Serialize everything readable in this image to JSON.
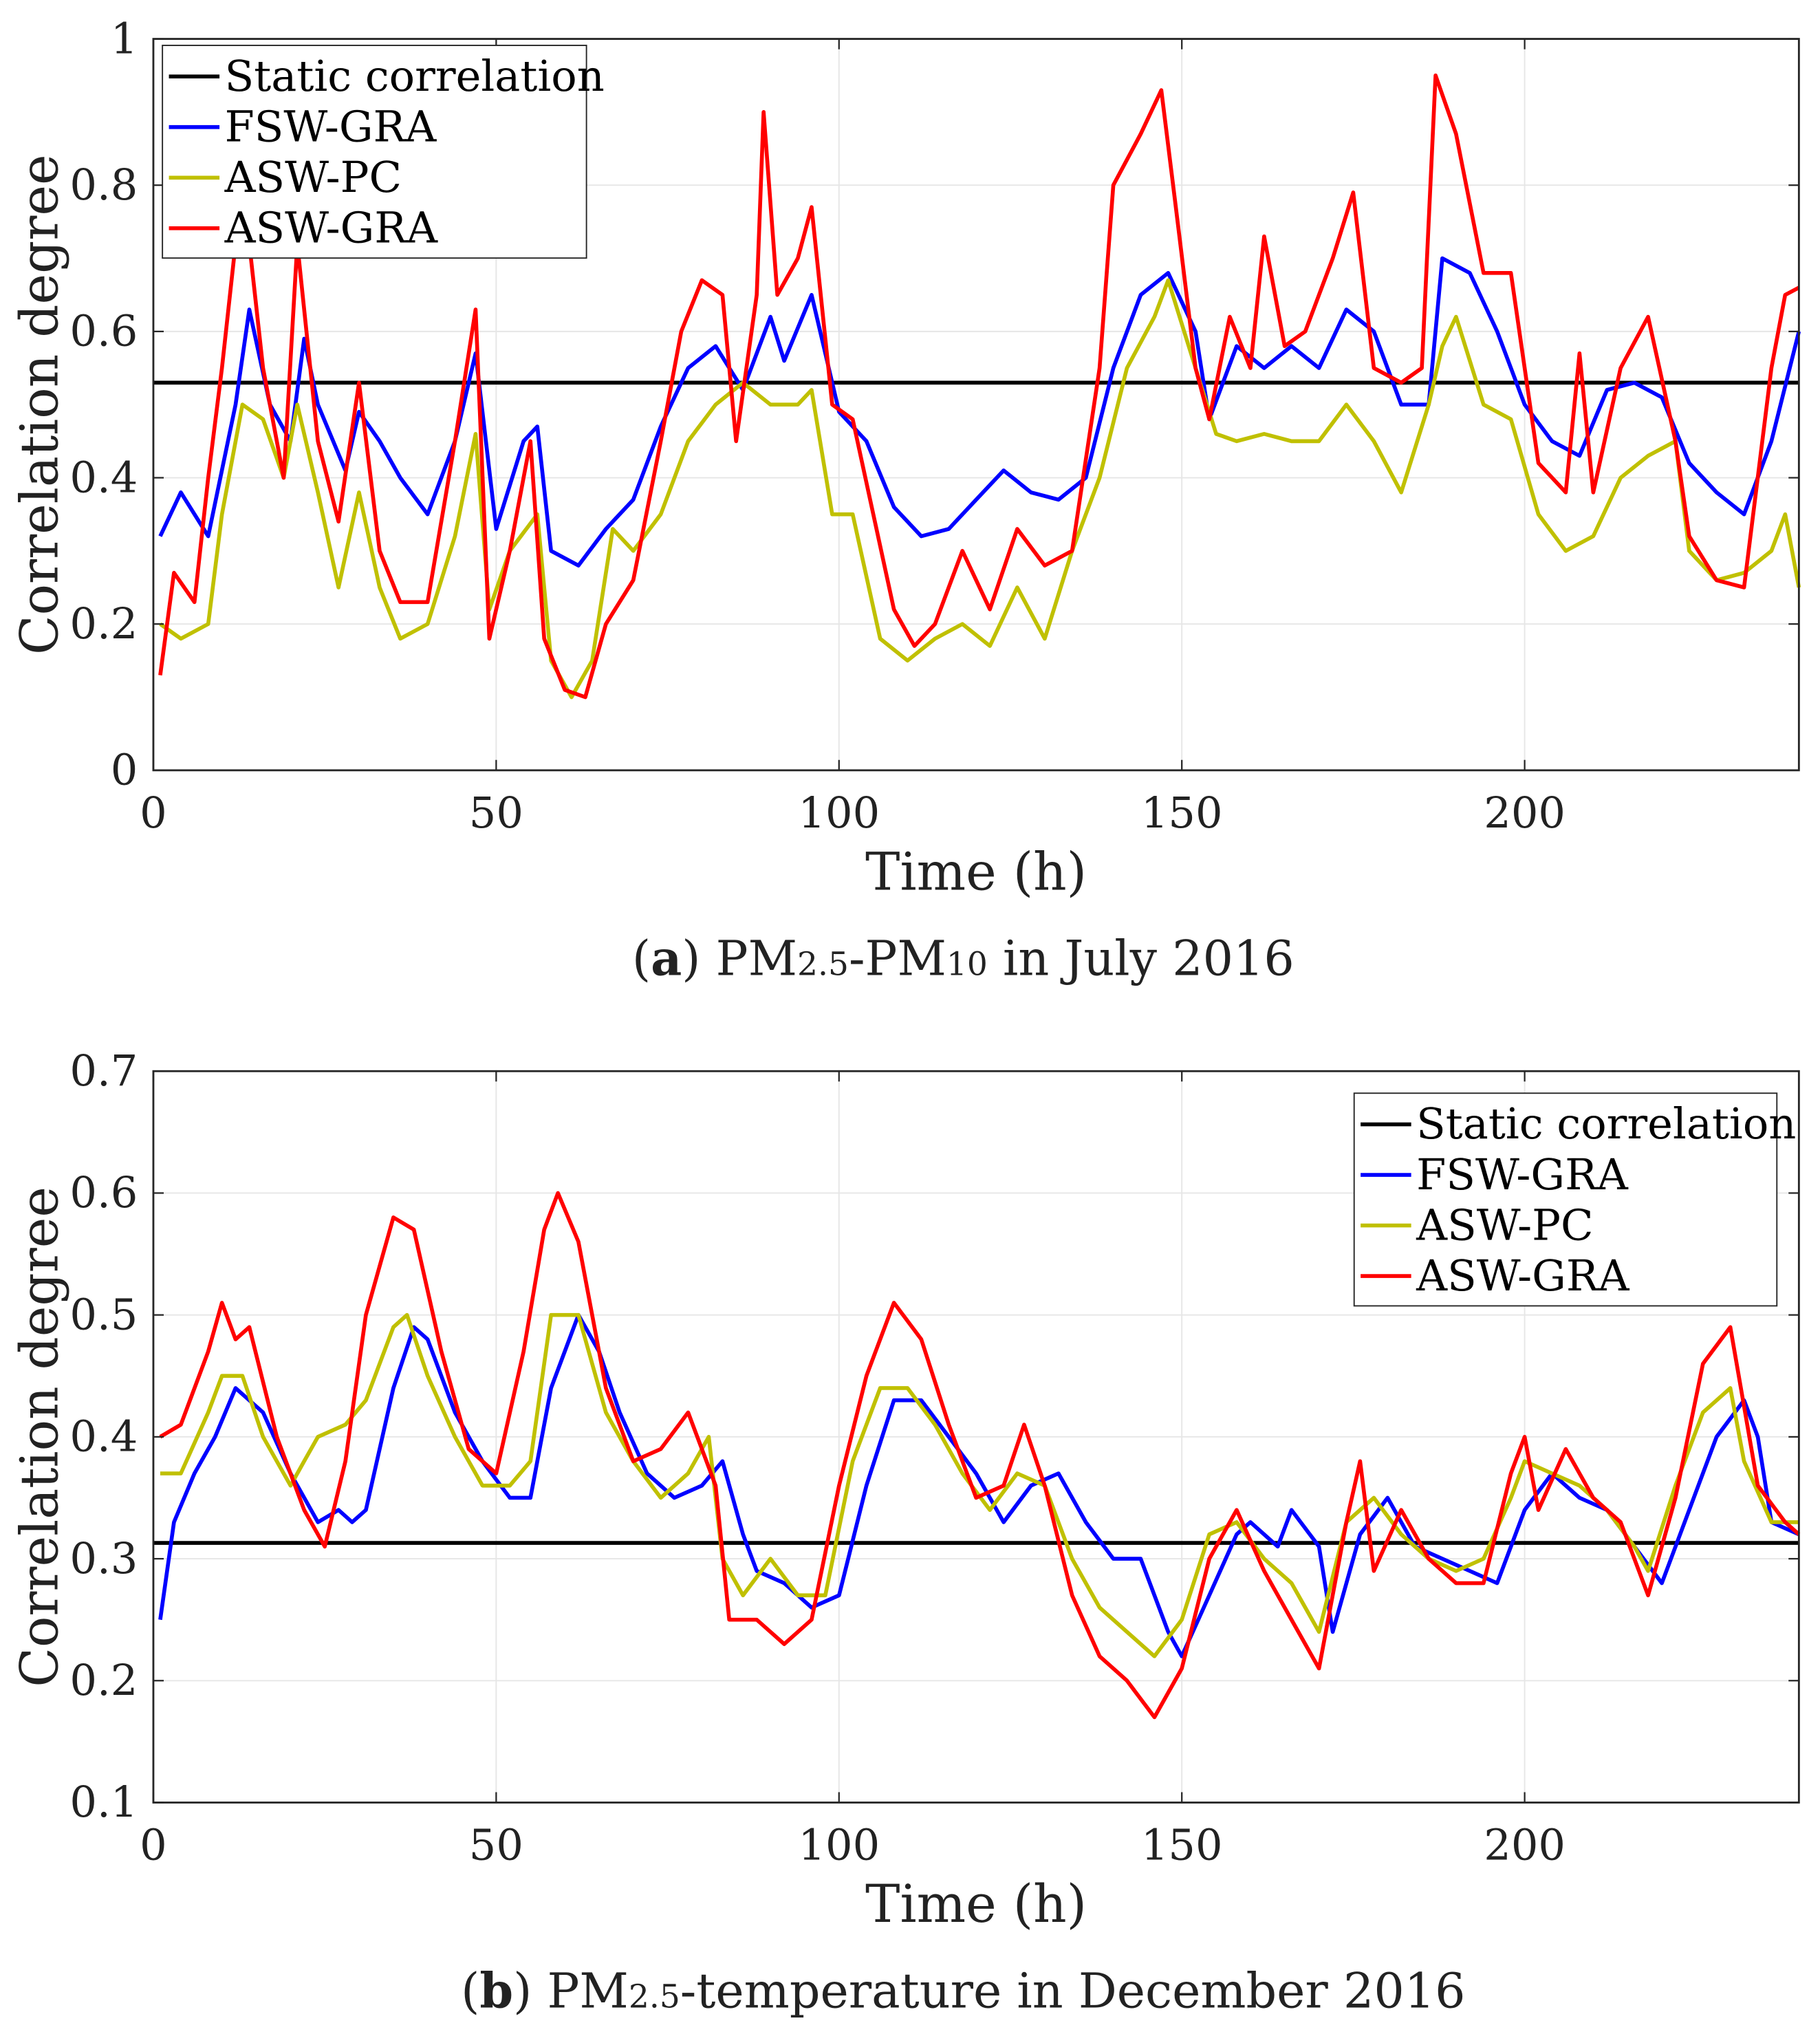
{
  "chart_data": [
    {
      "type": "line",
      "panel": "a",
      "caption": {
        "open": "(",
        "letter": "a",
        "t1": ") PM",
        "s1": "2.5",
        "t2": "-PM",
        "s2": "10",
        "t3": " in July 2016"
      },
      "xlabel": "Time (h)",
      "ylabel": "Correlation degree",
      "xlim": [
        0,
        240
      ],
      "ylim": [
        0,
        1
      ],
      "xticks": [
        0,
        50,
        100,
        150,
        200
      ],
      "yticks": [
        0,
        0.2,
        0.4,
        0.6,
        0.8,
        1
      ],
      "ytick_labels": [
        "0",
        "0.2",
        "0.4",
        "0.6",
        "0.8",
        "1"
      ],
      "grid": true,
      "legend_position": "top-left",
      "series": [
        {
          "name": "Static correlation",
          "color": "#000000",
          "x": [
            0,
            240
          ],
          "y": [
            0.53,
            0.53
          ]
        },
        {
          "name": "FSW-GRA",
          "color": "#0000ff",
          "x": [
            1,
            4,
            8,
            12,
            14,
            17,
            20,
            22,
            24,
            28,
            30,
            33,
            36,
            40,
            44,
            47,
            50,
            54,
            56,
            58,
            62,
            66,
            70,
            74,
            78,
            82,
            86,
            90,
            92,
            96,
            100,
            104,
            108,
            112,
            116,
            120,
            124,
            128,
            132,
            136,
            140,
            144,
            148,
            152,
            154,
            158,
            162,
            166,
            170,
            174,
            178,
            182,
            186,
            188,
            192,
            196,
            200,
            204,
            208,
            212,
            216,
            220,
            224,
            228,
            232,
            236,
            240
          ],
          "y": [
            0.32,
            0.38,
            0.32,
            0.5,
            0.63,
            0.5,
            0.45,
            0.59,
            0.5,
            0.41,
            0.49,
            0.45,
            0.4,
            0.35,
            0.45,
            0.57,
            0.33,
            0.45,
            0.47,
            0.3,
            0.28,
            0.33,
            0.37,
            0.47,
            0.55,
            0.58,
            0.52,
            0.62,
            0.56,
            0.65,
            0.49,
            0.45,
            0.36,
            0.32,
            0.33,
            0.37,
            0.41,
            0.38,
            0.37,
            0.4,
            0.55,
            0.65,
            0.68,
            0.6,
            0.48,
            0.58,
            0.55,
            0.58,
            0.55,
            0.63,
            0.6,
            0.5,
            0.5,
            0.7,
            0.68,
            0.6,
            0.5,
            0.45,
            0.43,
            0.52,
            0.53,
            0.51,
            0.42,
            0.38,
            0.35,
            0.45,
            0.6
          ]
        },
        {
          "name": "ASW-PC",
          "color": "#c0c000",
          "x": [
            1,
            4,
            8,
            10,
            13,
            16,
            19,
            21,
            24,
            27,
            30,
            33,
            36,
            40,
            44,
            47,
            49,
            52,
            56,
            58,
            61,
            64,
            67,
            70,
            74,
            78,
            82,
            86,
            90,
            94,
            96,
            99,
            102,
            106,
            110,
            114,
            118,
            122,
            126,
            130,
            134,
            138,
            142,
            146,
            148,
            152,
            155,
            158,
            162,
            166,
            170,
            174,
            178,
            182,
            186,
            188,
            190,
            194,
            198,
            202,
            206,
            210,
            214,
            218,
            222,
            224,
            228,
            232,
            236,
            238,
            240
          ],
          "y": [
            0.2,
            0.18,
            0.2,
            0.35,
            0.5,
            0.48,
            0.4,
            0.5,
            0.38,
            0.25,
            0.38,
            0.25,
            0.18,
            0.2,
            0.32,
            0.46,
            0.22,
            0.3,
            0.35,
            0.15,
            0.1,
            0.15,
            0.33,
            0.3,
            0.35,
            0.45,
            0.5,
            0.53,
            0.5,
            0.5,
            0.52,
            0.35,
            0.35,
            0.18,
            0.15,
            0.18,
            0.2,
            0.17,
            0.25,
            0.18,
            0.3,
            0.4,
            0.55,
            0.62,
            0.67,
            0.55,
            0.46,
            0.45,
            0.46,
            0.45,
            0.45,
            0.5,
            0.45,
            0.38,
            0.5,
            0.58,
            0.62,
            0.5,
            0.48,
            0.35,
            0.3,
            0.32,
            0.4,
            0.43,
            0.45,
            0.3,
            0.26,
            0.27,
            0.3,
            0.35,
            0.25
          ]
        },
        {
          "name": "ASW-GRA",
          "color": "#ff0000",
          "x": [
            1,
            3,
            6,
            8,
            10,
            12,
            14,
            16,
            19,
            21,
            24,
            27,
            30,
            33,
            36,
            40,
            44,
            47,
            49,
            52,
            55,
            57,
            60,
            63,
            66,
            70,
            74,
            77,
            80,
            83,
            85,
            88,
            89,
            91,
            94,
            96,
            99,
            102,
            105,
            108,
            111,
            114,
            118,
            122,
            126,
            130,
            134,
            138,
            140,
            144,
            147,
            149,
            152,
            154,
            157,
            160,
            162,
            165,
            168,
            172,
            175,
            178,
            182,
            185,
            187,
            190,
            194,
            198,
            202,
            206,
            208,
            210,
            214,
            218,
            222,
            224,
            228,
            232,
            236,
            238,
            240
          ],
          "y": [
            0.13,
            0.27,
            0.23,
            0.4,
            0.55,
            0.72,
            0.72,
            0.55,
            0.4,
            0.72,
            0.45,
            0.34,
            0.53,
            0.3,
            0.23,
            0.23,
            0.45,
            0.63,
            0.18,
            0.3,
            0.45,
            0.18,
            0.11,
            0.1,
            0.2,
            0.26,
            0.45,
            0.6,
            0.67,
            0.65,
            0.45,
            0.65,
            0.9,
            0.65,
            0.7,
            0.77,
            0.5,
            0.48,
            0.35,
            0.22,
            0.17,
            0.2,
            0.3,
            0.22,
            0.33,
            0.28,
            0.3,
            0.55,
            0.8,
            0.87,
            0.93,
            0.78,
            0.55,
            0.48,
            0.62,
            0.55,
            0.73,
            0.58,
            0.6,
            0.7,
            0.79,
            0.55,
            0.53,
            0.55,
            0.95,
            0.87,
            0.68,
            0.68,
            0.42,
            0.38,
            0.57,
            0.38,
            0.55,
            0.62,
            0.45,
            0.32,
            0.26,
            0.25,
            0.55,
            0.65,
            0.66
          ]
        }
      ]
    },
    {
      "type": "line",
      "panel": "b",
      "caption": {
        "open": "(",
        "letter": "b",
        "t1": ") PM",
        "s1": "2.5",
        "t2": "-temperature in December 2016",
        "s2": "",
        "t3": ""
      },
      "xlabel": "Time (h)",
      "ylabel": "Correlation degree",
      "xlim": [
        0,
        240
      ],
      "ylim": [
        0.1,
        0.7
      ],
      "xticks": [
        0,
        50,
        100,
        150,
        200
      ],
      "yticks": [
        0.1,
        0.2,
        0.3,
        0.4,
        0.5,
        0.6,
        0.7
      ],
      "ytick_labels": [
        "0.1",
        "0.2",
        "0.3",
        "0.4",
        "0.5",
        "0.6",
        "0.7"
      ],
      "grid": true,
      "legend_position": "top-right",
      "series": [
        {
          "name": "Static correlation",
          "color": "#000000",
          "x": [
            0,
            240
          ],
          "y": [
            0.313,
            0.313
          ]
        },
        {
          "name": "FSW-GRA",
          "color": "#0000ff",
          "x": [
            1,
            3,
            6,
            9,
            12,
            16,
            20,
            24,
            27,
            29,
            31,
            35,
            38,
            40,
            44,
            48,
            52,
            55,
            58,
            62,
            65,
            68,
            72,
            76,
            80,
            83,
            86,
            88,
            92,
            96,
            100,
            104,
            108,
            112,
            116,
            120,
            124,
            128,
            132,
            136,
            140,
            144,
            148,
            150,
            154,
            158,
            160,
            164,
            166,
            170,
            172,
            176,
            180,
            184,
            188,
            192,
            196,
            200,
            204,
            208,
            212,
            216,
            220,
            224,
            228,
            232,
            234,
            236,
            240
          ],
          "y": [
            0.25,
            0.33,
            0.37,
            0.4,
            0.44,
            0.42,
            0.37,
            0.33,
            0.34,
            0.33,
            0.34,
            0.44,
            0.49,
            0.48,
            0.42,
            0.38,
            0.35,
            0.35,
            0.44,
            0.5,
            0.47,
            0.42,
            0.37,
            0.35,
            0.36,
            0.38,
            0.32,
            0.29,
            0.28,
            0.26,
            0.27,
            0.36,
            0.43,
            0.43,
            0.4,
            0.37,
            0.33,
            0.36,
            0.37,
            0.33,
            0.3,
            0.3,
            0.24,
            0.22,
            0.27,
            0.32,
            0.33,
            0.31,
            0.34,
            0.31,
            0.24,
            0.32,
            0.35,
            0.31,
            0.3,
            0.29,
            0.28,
            0.34,
            0.37,
            0.35,
            0.34,
            0.31,
            0.28,
            0.34,
            0.4,
            0.43,
            0.4,
            0.33,
            0.32
          ]
        },
        {
          "name": "ASW-PC",
          "color": "#c0c000",
          "x": [
            1,
            4,
            8,
            10,
            13,
            16,
            20,
            22,
            24,
            28,
            31,
            35,
            37,
            40,
            44,
            48,
            52,
            55,
            58,
            62,
            66,
            70,
            74,
            78,
            81,
            83,
            86,
            90,
            94,
            98,
            102,
            106,
            110,
            114,
            118,
            122,
            126,
            130,
            134,
            138,
            142,
            146,
            150,
            154,
            158,
            162,
            166,
            170,
            174,
            178,
            182,
            186,
            190,
            194,
            198,
            200,
            204,
            208,
            212,
            216,
            218,
            222,
            226,
            230,
            232,
            236,
            240
          ],
          "y": [
            0.37,
            0.37,
            0.42,
            0.45,
            0.45,
            0.4,
            0.36,
            0.38,
            0.4,
            0.41,
            0.43,
            0.49,
            0.5,
            0.45,
            0.4,
            0.36,
            0.36,
            0.38,
            0.5,
            0.5,
            0.42,
            0.38,
            0.35,
            0.37,
            0.4,
            0.3,
            0.27,
            0.3,
            0.27,
            0.27,
            0.38,
            0.44,
            0.44,
            0.41,
            0.37,
            0.34,
            0.37,
            0.36,
            0.3,
            0.26,
            0.24,
            0.22,
            0.25,
            0.32,
            0.33,
            0.3,
            0.28,
            0.24,
            0.33,
            0.35,
            0.32,
            0.3,
            0.29,
            0.3,
            0.35,
            0.38,
            0.37,
            0.36,
            0.34,
            0.31,
            0.29,
            0.36,
            0.42,
            0.44,
            0.38,
            0.33,
            0.33
          ]
        },
        {
          "name": "ASW-GRA",
          "color": "#ff0000",
          "x": [
            1,
            4,
            8,
            10,
            12,
            14,
            18,
            22,
            25,
            28,
            31,
            35,
            38,
            42,
            46,
            50,
            54,
            57,
            59,
            62,
            66,
            70,
            74,
            78,
            82,
            84,
            88,
            92,
            96,
            100,
            104,
            108,
            112,
            116,
            120,
            124,
            127,
            130,
            134,
            138,
            142,
            146,
            150,
            154,
            158,
            162,
            166,
            170,
            174,
            176,
            178,
            182,
            186,
            190,
            194,
            198,
            200,
            202,
            206,
            210,
            214,
            218,
            222,
            226,
            230,
            234,
            238,
            240
          ],
          "y": [
            0.4,
            0.41,
            0.47,
            0.51,
            0.48,
            0.49,
            0.4,
            0.34,
            0.31,
            0.38,
            0.5,
            0.58,
            0.57,
            0.47,
            0.39,
            0.37,
            0.47,
            0.57,
            0.6,
            0.56,
            0.44,
            0.38,
            0.39,
            0.42,
            0.36,
            0.25,
            0.25,
            0.23,
            0.25,
            0.36,
            0.45,
            0.51,
            0.48,
            0.41,
            0.35,
            0.36,
            0.41,
            0.36,
            0.27,
            0.22,
            0.2,
            0.17,
            0.21,
            0.3,
            0.34,
            0.29,
            0.25,
            0.21,
            0.33,
            0.38,
            0.29,
            0.34,
            0.3,
            0.28,
            0.28,
            0.37,
            0.4,
            0.34,
            0.39,
            0.35,
            0.33,
            0.27,
            0.35,
            0.46,
            0.49,
            0.36,
            0.33,
            0.32
          ]
        }
      ]
    }
  ]
}
